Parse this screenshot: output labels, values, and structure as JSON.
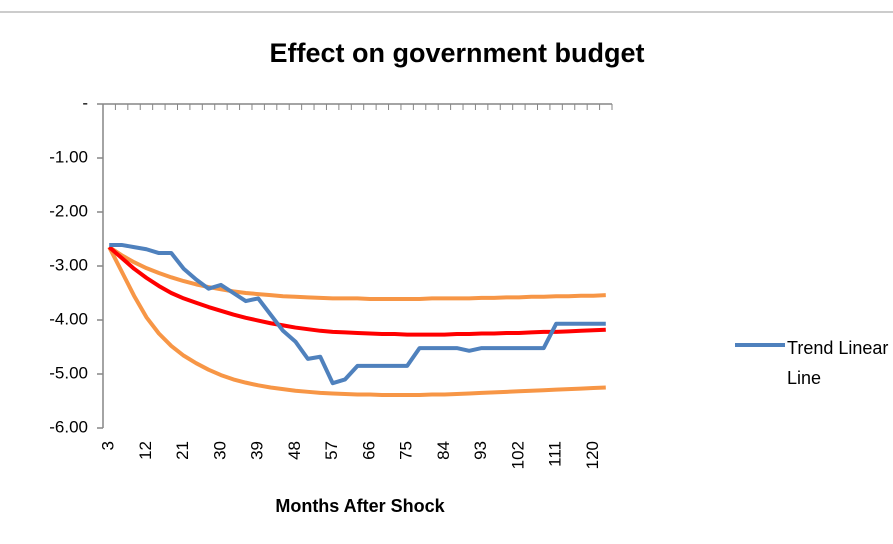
{
  "chart_data": {
    "type": "line",
    "title": "Effect on government budget",
    "x_label": "Months After Shock",
    "categories": [
      3,
      null,
      null,
      12,
      null,
      null,
      21,
      null,
      null,
      30,
      null,
      null,
      39,
      null,
      null,
      48,
      null,
      null,
      57,
      null,
      null,
      66,
      null,
      null,
      75,
      null,
      null,
      84,
      null,
      null,
      93,
      null,
      null,
      102,
      null,
      null,
      111,
      null,
      null,
      120,
      null
    ],
    "series": [
      {
        "color": "#f79646",
        "values": [
          -2.65,
          -2.8,
          -2.93,
          -3.04,
          -3.13,
          -3.21,
          -3.28,
          -3.34,
          -3.39,
          -3.43,
          -3.47,
          -3.5,
          -3.52,
          -3.54,
          -3.56,
          -3.57,
          -3.58,
          -3.59,
          -3.6,
          -3.6,
          -3.6,
          -3.61,
          -3.61,
          -3.61,
          -3.61,
          -3.61,
          -3.6,
          -3.6,
          -3.6,
          -3.6,
          -3.59,
          -3.59,
          -3.58,
          -3.58,
          -3.57,
          -3.57,
          -3.56,
          -3.56,
          -3.55,
          -3.55,
          -3.54
        ]
      },
      {
        "color": "#f79646",
        "values": [
          -2.65,
          -3.1,
          -3.55,
          -3.95,
          -4.25,
          -4.48,
          -4.66,
          -4.8,
          -4.92,
          -5.02,
          -5.1,
          -5.16,
          -5.21,
          -5.25,
          -5.28,
          -5.31,
          -5.33,
          -5.35,
          -5.36,
          -5.37,
          -5.38,
          -5.38,
          -5.39,
          -5.39,
          -5.39,
          -5.39,
          -5.38,
          -5.38,
          -5.37,
          -5.36,
          -5.35,
          -5.34,
          -5.33,
          -5.32,
          -5.31,
          -5.3,
          -5.29,
          -5.28,
          -5.27,
          -5.26,
          -5.25
        ]
      },
      {
        "color": "#ff0000",
        "values": [
          -2.65,
          -2.85,
          -3.05,
          -3.22,
          -3.37,
          -3.5,
          -3.6,
          -3.68,
          -3.76,
          -3.83,
          -3.9,
          -3.96,
          -4.01,
          -4.06,
          -4.1,
          -4.14,
          -4.17,
          -4.2,
          -4.22,
          -4.23,
          -4.24,
          -4.25,
          -4.26,
          -4.26,
          -4.27,
          -4.27,
          -4.27,
          -4.27,
          -4.26,
          -4.26,
          -4.25,
          -4.25,
          -4.24,
          -4.24,
          -4.23,
          -4.22,
          -4.22,
          -4.21,
          -4.2,
          -4.19,
          -4.18
        ]
      },
      {
        "name": "Trend Linear Line",
        "color": "#4f81bd",
        "values": [
          -2.61,
          -2.61,
          -2.65,
          -2.69,
          -2.76,
          -2.76,
          -3.05,
          -3.25,
          -3.42,
          -3.35,
          -3.5,
          -3.65,
          -3.6,
          -3.9,
          -4.2,
          -4.4,
          -4.72,
          -4.68,
          -5.17,
          -5.1,
          -4.85,
          -4.85,
          -4.85,
          -4.85,
          -4.85,
          -4.52,
          -4.52,
          -4.52,
          -4.52,
          -4.57,
          -4.52,
          -4.52,
          -4.52,
          -4.52,
          -4.52,
          -4.52,
          -4.07,
          -4.07,
          -4.07,
          -4.07,
          -4.07
        ]
      }
    ],
    "ylim": [
      -6,
      0
    ],
    "yticks": [
      {
        "value": 0,
        "label": "-"
      },
      {
        "value": -1,
        "label": "-1.00"
      },
      {
        "value": -2,
        "label": "-2.00"
      },
      {
        "value": -3,
        "label": "-3.00"
      },
      {
        "value": -4,
        "label": "-4.00"
      },
      {
        "value": -5,
        "label": "-5.00"
      },
      {
        "value": -6,
        "label": "-6.00"
      }
    ],
    "legend": "right"
  }
}
